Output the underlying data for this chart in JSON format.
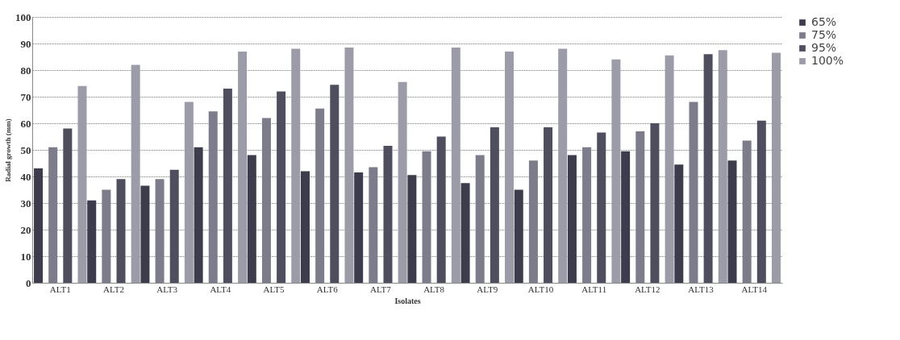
{
  "chart_data": {
    "type": "bar",
    "xlabel": "Isolates",
    "ylabel": "Radial growth (mm)",
    "categories": [
      "ALT1",
      "ALT2",
      "ALT3",
      "ALT4",
      "ALT5",
      "ALT6",
      "ALT7",
      "ALT8",
      "ALT9",
      "ALT10",
      "ALT11",
      "ALT12",
      "ALT13",
      "ALT14"
    ],
    "series": [
      {
        "name": "65%",
        "color": "#3c3c4c",
        "values": [
          43,
          31,
          36.5,
          51,
          48,
          42,
          41.5,
          40.5,
          37.5,
          35,
          48,
          49.5,
          44.5,
          46
        ]
      },
      {
        "name": "75%",
        "color": "#7c7c8a",
        "values": [
          51,
          35,
          39,
          64.5,
          62,
          65.5,
          43.5,
          49.5,
          48,
          46,
          51,
          57,
          68,
          53.5
        ]
      },
      {
        "name": "95%",
        "color": "#4e4e5e",
        "values": [
          58,
          39,
          42.5,
          73,
          72,
          74.5,
          51.5,
          55,
          58.5,
          58.5,
          56.5,
          60,
          86,
          61
        ]
      },
      {
        "name": "100%",
        "color": "#9c9ca8",
        "values": [
          74,
          82,
          68,
          87,
          88,
          88.5,
          75.5,
          88.5,
          87,
          88,
          84,
          85.5,
          87.5,
          86.5
        ]
      }
    ],
    "ylim": [
      0,
      100
    ],
    "yticks": [
      0,
      10,
      20,
      30,
      40,
      50,
      60,
      70,
      80,
      90,
      100
    ],
    "grid": "y",
    "legend": "right"
  }
}
